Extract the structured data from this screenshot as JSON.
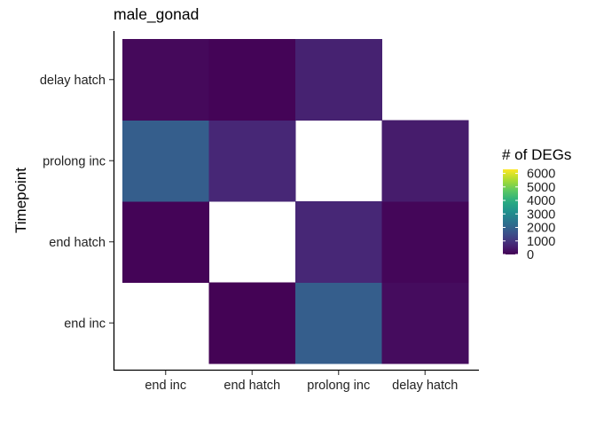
{
  "chart_data": {
    "type": "heatmap",
    "title": "male_gonad",
    "xlabel": "",
    "ylabel": "Timepoint",
    "x_categories": [
      "end inc",
      "end hatch",
      "prolong inc",
      "delay hatch"
    ],
    "y_categories": [
      "end inc",
      "end hatch",
      "prolong inc",
      "delay hatch"
    ],
    "cells": [
      {
        "x": "end hatch",
        "y": "end inc",
        "value": 30
      },
      {
        "x": "prolong inc",
        "y": "end inc",
        "value": 1900
      },
      {
        "x": "delay hatch",
        "y": "end inc",
        "value": 200
      },
      {
        "x": "end inc",
        "y": "end hatch",
        "value": 60
      },
      {
        "x": "prolong inc",
        "y": "end hatch",
        "value": 700
      },
      {
        "x": "delay hatch",
        "y": "end hatch",
        "value": 100
      },
      {
        "x": "end inc",
        "y": "prolong inc",
        "value": 1900
      },
      {
        "x": "end hatch",
        "y": "prolong inc",
        "value": 700
      },
      {
        "x": "delay hatch",
        "y": "prolong inc",
        "value": 500
      },
      {
        "x": "end inc",
        "y": "delay hatch",
        "value": 150
      },
      {
        "x": "end hatch",
        "y": "delay hatch",
        "value": 60
      },
      {
        "x": "prolong inc",
        "y": "delay hatch",
        "value": 600
      }
    ],
    "legend": {
      "title": "# of DEGs",
      "ticks": [
        0,
        1000,
        2000,
        3000,
        4000,
        5000,
        6000
      ],
      "tick_labels": [
        "0",
        "1000",
        "2000",
        "3000",
        "4000",
        "5000",
        "6000"
      ],
      "range": [
        0,
        6300
      ],
      "colormap": "viridis",
      "placement": "right"
    },
    "grid": false
  }
}
